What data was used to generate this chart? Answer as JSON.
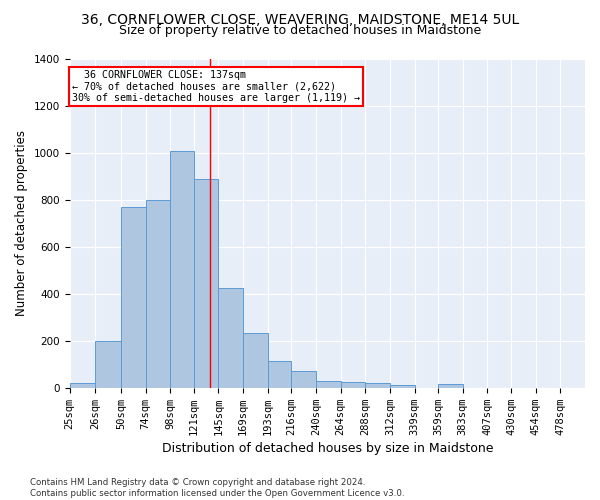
{
  "title1": "36, CORNFLOWER CLOSE, WEAVERING, MAIDSTONE, ME14 5UL",
  "title2": "Size of property relative to detached houses in Maidstone",
  "xlabel": "Distribution of detached houses by size in Maidstone",
  "ylabel": "Number of detached properties",
  "footnote": "Contains HM Land Registry data © Crown copyright and database right 2024.\nContains public sector information licensed under the Open Government Licence v3.0.",
  "bar_labels": [
    "25sqm",
    "26sqm",
    "50sqm",
    "74sqm",
    "98sqm",
    "121sqm",
    "145sqm",
    "169sqm",
    "193sqm",
    "216sqm",
    "240sqm",
    "264sqm",
    "288sqm",
    "312sqm",
    "339sqm",
    "359sqm",
    "383sqm",
    "407sqm",
    "430sqm",
    "454sqm",
    "478sqm"
  ],
  "bar_values": [
    20,
    200,
    770,
    800,
    1010,
    890,
    425,
    235,
    115,
    70,
    30,
    25,
    20,
    12,
    0,
    15,
    0,
    0,
    0,
    0,
    0
  ],
  "bar_color": "#aec6e0",
  "bar_edge_color": "#5b9bd5",
  "vline_x": 137,
  "vline_color": "red",
  "annotation_text": "  36 CORNFLOWER CLOSE: 137sqm\n← 70% of detached houses are smaller (2,622)\n30% of semi-detached houses are larger (1,119) →",
  "annotation_box_color": "white",
  "annotation_box_edge_color": "red",
  "ylim": [
    0,
    1400
  ],
  "background_color": "#e8eef8",
  "grid_color": "#ffffff",
  "title1_fontsize": 10,
  "title2_fontsize": 9,
  "xlabel_fontsize": 9,
  "ylabel_fontsize": 8.5,
  "tick_fontsize": 7.5,
  "bin_edges": [
    0,
    25,
    50,
    74,
    98,
    121,
    145,
    169,
    193,
    216,
    240,
    264,
    288,
    312,
    336,
    359,
    383,
    407,
    430,
    454,
    478,
    502
  ],
  "property_size": 137,
  "yticks": [
    0,
    200,
    400,
    600,
    800,
    1000,
    1200,
    1400
  ]
}
